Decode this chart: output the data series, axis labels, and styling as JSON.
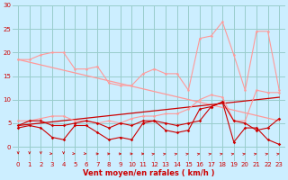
{
  "background_color": "#cceeff",
  "grid_color": "#99cccc",
  "line_color_dark": "#cc0000",
  "line_color_light": "#ff9999",
  "xlabel": "Vent moyen/en rafales ( km/h )",
  "xlim": [
    -0.5,
    23.5
  ],
  "ylim": [
    -3,
    30
  ],
  "yticks": [
    0,
    5,
    10,
    15,
    20,
    25,
    30
  ],
  "xticks": [
    0,
    1,
    2,
    3,
    4,
    5,
    6,
    7,
    8,
    9,
    10,
    11,
    12,
    13,
    14,
    15,
    16,
    17,
    18,
    19,
    20,
    21,
    22,
    23
  ],
  "series_light": [
    [
      18.5,
      18.5,
      19.5,
      20.0,
      20.0,
      16.5,
      16.5,
      17.0,
      13.5,
      13.0,
      13.0,
      15.5,
      16.5,
      15.5,
      15.5,
      12.0,
      23.0,
      23.5,
      26.5,
      19.5,
      12.0,
      24.5,
      24.5,
      12.0
    ],
    [
      5.5,
      5.5,
      6.0,
      6.5,
      6.5,
      5.5,
      5.5,
      5.0,
      5.5,
      5.0,
      6.0,
      6.5,
      6.5,
      7.0,
      7.0,
      8.0,
      10.0,
      11.0,
      10.5,
      5.5,
      5.5,
      12.0,
      11.5,
      11.5
    ]
  ],
  "series_dark": [
    [
      4.5,
      5.5,
      5.5,
      4.5,
      4.5,
      5.0,
      5.5,
      5.0,
      4.0,
      5.0,
      4.5,
      5.5,
      5.5,
      5.0,
      4.5,
      5.0,
      5.5,
      8.5,
      9.5,
      5.5,
      5.0,
      3.5,
      4.0,
      6.0
    ],
    [
      4.0,
      4.5,
      4.0,
      2.0,
      1.5,
      4.5,
      4.5,
      3.0,
      1.5,
      2.0,
      1.5,
      5.0,
      5.5,
      3.5,
      3.0,
      3.5,
      8.0,
      8.5,
      9.5,
      1.0,
      4.0,
      4.0,
      1.5,
      0.5
    ]
  ],
  "trend_light": {
    "x": [
      0,
      23
    ],
    "y": [
      18.5,
      5.5
    ]
  },
  "trend_dark": {
    "x": [
      0,
      23
    ],
    "y": [
      4.5,
      10.5
    ]
  },
  "arrow_color": "#cc0000",
  "arrow_directions": [
    0,
    0,
    0,
    45,
    0,
    45,
    45,
    90,
    90,
    90,
    90,
    90,
    135,
    135,
    135,
    135,
    135,
    135,
    135,
    135,
    135,
    135,
    135,
    135
  ]
}
